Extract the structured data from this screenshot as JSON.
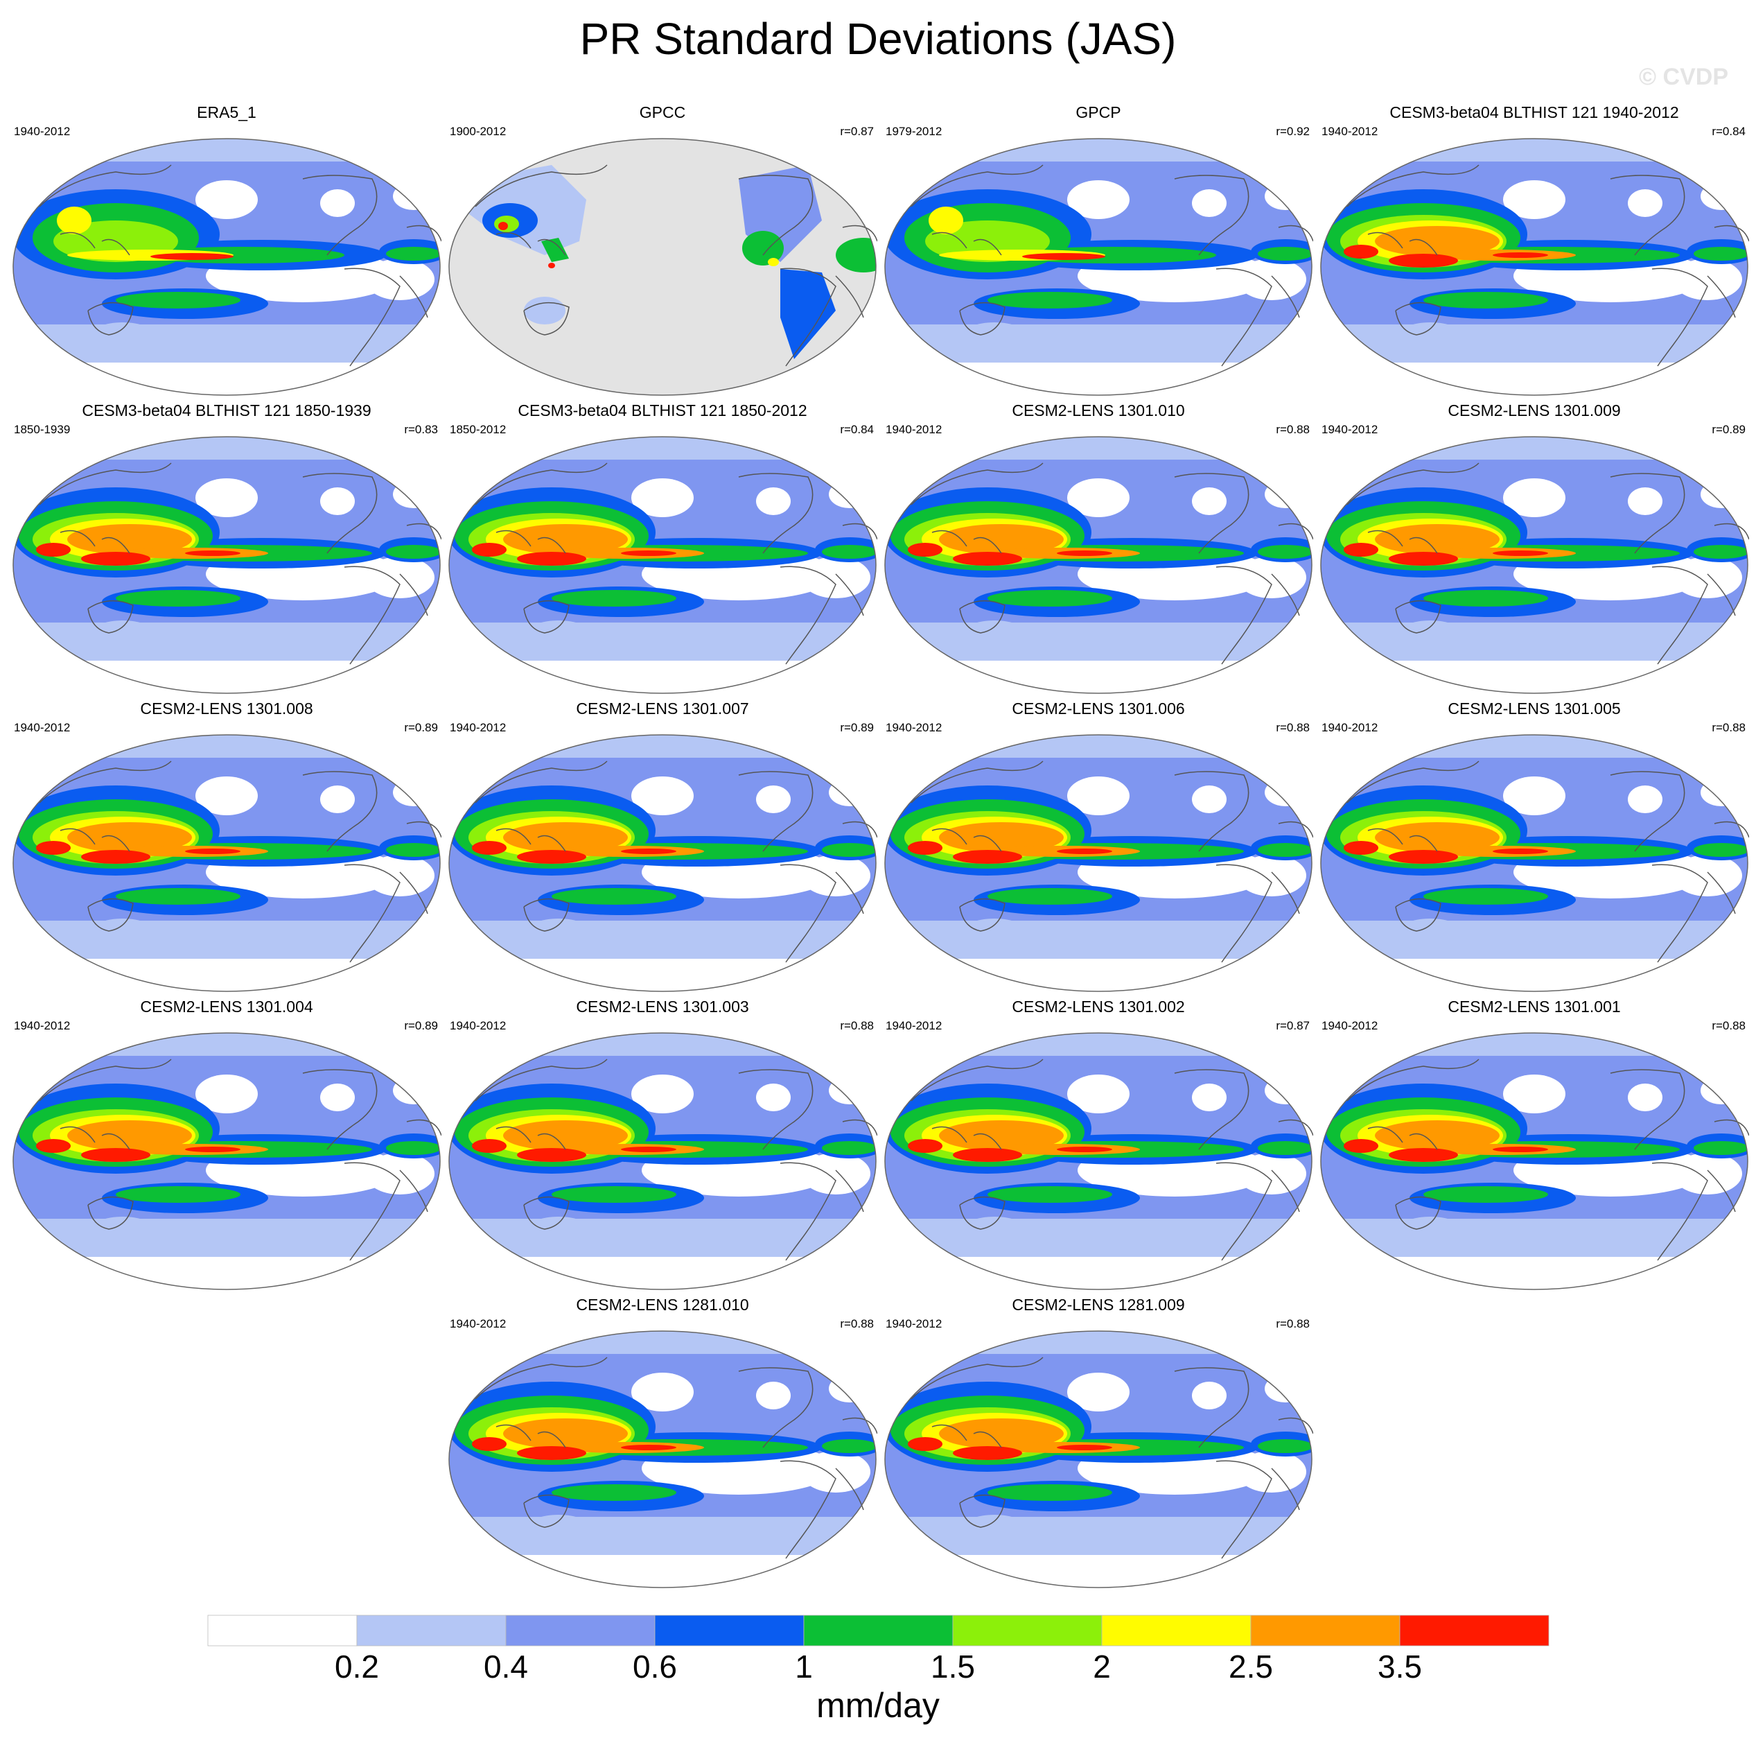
{
  "title": "PR Standard Deviations (JAS)",
  "watermark": "© CVDP",
  "panels": [
    {
      "title": "ERA5_1",
      "period": "1940-2012",
      "r": "",
      "type": "obs"
    },
    {
      "title": "GPCC",
      "period": "1900-2012",
      "r": "r=0.87",
      "type": "gpcc"
    },
    {
      "title": "GPCP",
      "period": "1979-2012",
      "r": "r=0.92",
      "type": "obs"
    },
    {
      "title": "CESM3-beta04 BLTHIST 121 1940-2012",
      "period": "1940-2012",
      "r": "r=0.84",
      "type": "model"
    },
    {
      "title": "CESM3-beta04 BLTHIST 121 1850-1939",
      "period": "1850-1939",
      "r": "r=0.83",
      "type": "model"
    },
    {
      "title": "CESM3-beta04 BLTHIST 121 1850-2012",
      "period": "1850-2012",
      "r": "r=0.84",
      "type": "model"
    },
    {
      "title": "CESM2-LENS 1301.010",
      "period": "1940-2012",
      "r": "r=0.88",
      "type": "model"
    },
    {
      "title": "CESM2-LENS 1301.009",
      "period": "1940-2012",
      "r": "r=0.89",
      "type": "model"
    },
    {
      "title": "CESM2-LENS 1301.008",
      "period": "1940-2012",
      "r": "r=0.89",
      "type": "model"
    },
    {
      "title": "CESM2-LENS 1301.007",
      "period": "1940-2012",
      "r": "r=0.89",
      "type": "model"
    },
    {
      "title": "CESM2-LENS 1301.006",
      "period": "1940-2012",
      "r": "r=0.88",
      "type": "model"
    },
    {
      "title": "CESM2-LENS 1301.005",
      "period": "1940-2012",
      "r": "r=0.88",
      "type": "model"
    },
    {
      "title": "CESM2-LENS 1301.004",
      "period": "1940-2012",
      "r": "r=0.89",
      "type": "model"
    },
    {
      "title": "CESM2-LENS 1301.003",
      "period": "1940-2012",
      "r": "r=0.88",
      "type": "model"
    },
    {
      "title": "CESM2-LENS 1301.002",
      "period": "1940-2012",
      "r": "r=0.87",
      "type": "model"
    },
    {
      "title": "CESM2-LENS 1301.001",
      "period": "1940-2012",
      "r": "r=0.88",
      "type": "model"
    },
    {
      "title": "CESM2-LENS 1281.010",
      "period": "1940-2012",
      "r": "r=0.88",
      "type": "model"
    },
    {
      "title": "CESM2-LENS 1281.009",
      "period": "1940-2012",
      "r": "r=0.88",
      "type": "model"
    }
  ],
  "colorbar": {
    "levels": [
      "0.2",
      "0.4",
      "0.6",
      "1",
      "1.5",
      "2",
      "2.5",
      "3.5"
    ],
    "colors": [
      "#ffffff",
      "#b4c6f5",
      "#7f96f0",
      "#0a5cf0",
      "#0cbf35",
      "#8cf00a",
      "#fffc00",
      "#ff9900",
      "#ff1a00"
    ],
    "units": "mm/day"
  }
}
